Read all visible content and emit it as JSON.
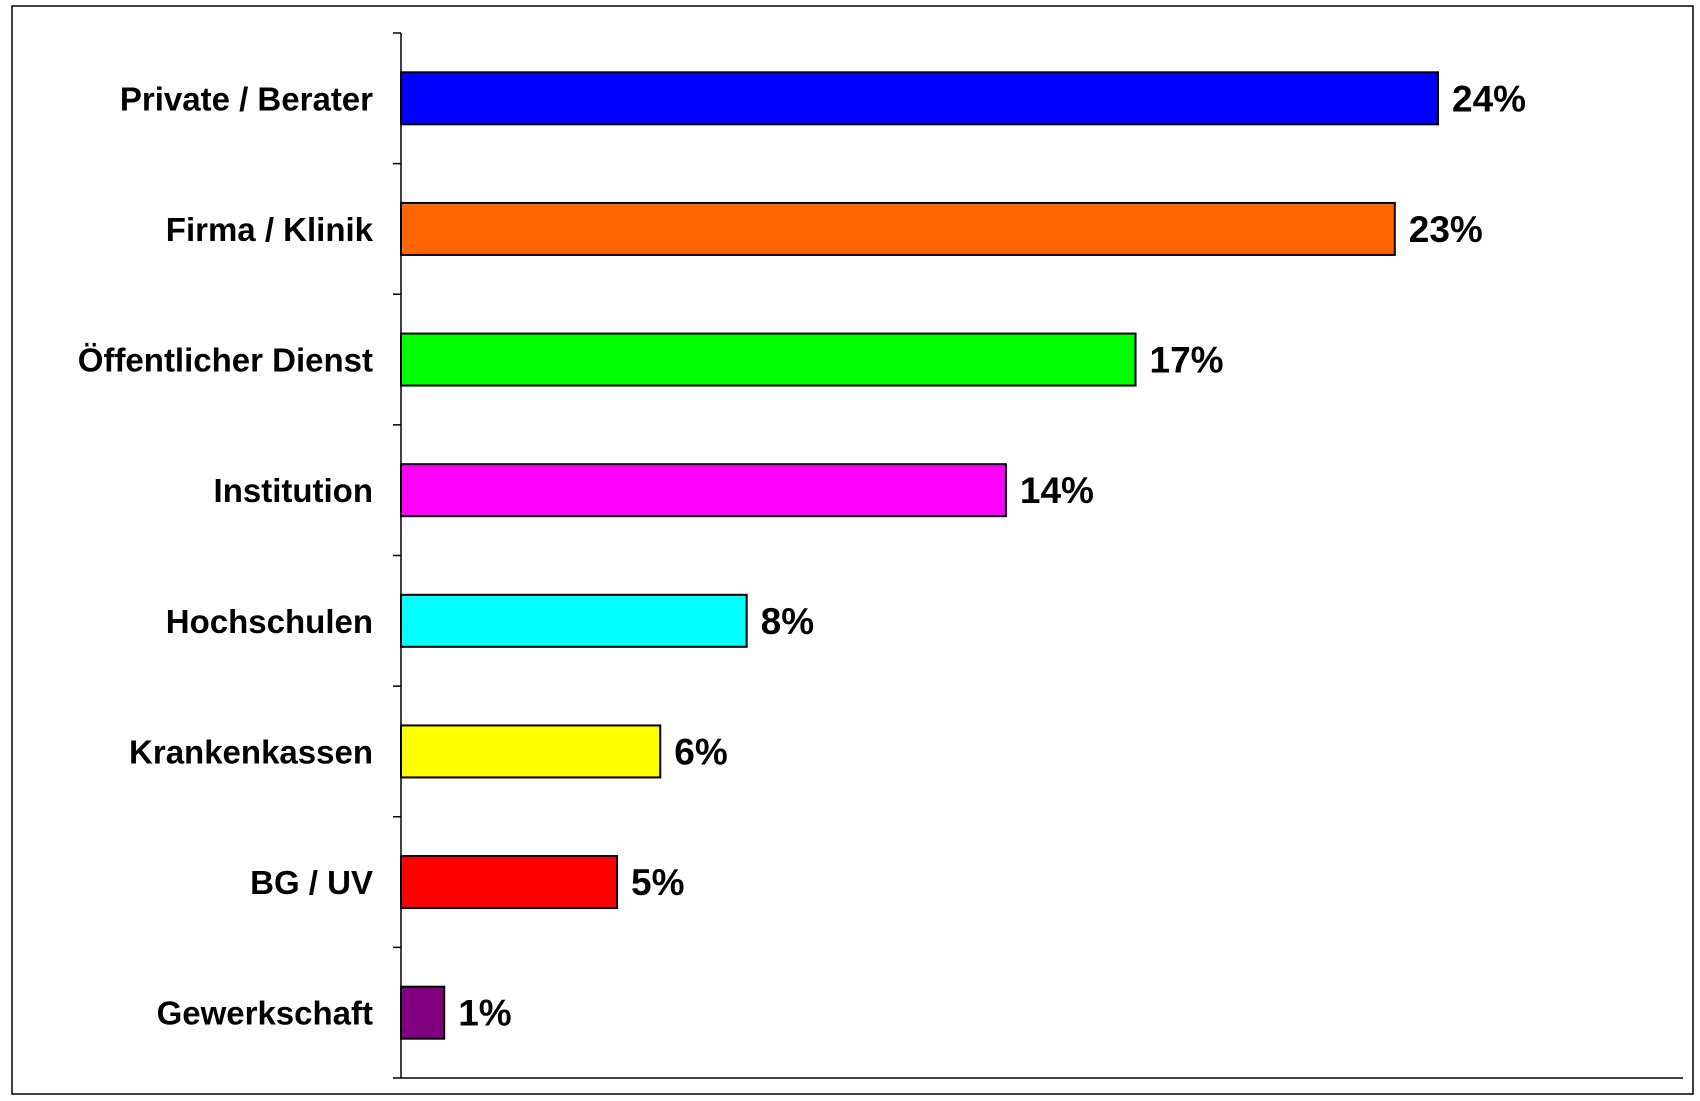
{
  "chart_data": {
    "type": "bar",
    "orientation": "horizontal",
    "categories": [
      "Private / Berater",
      "Firma / Klinik",
      "Öffentlicher Dienst",
      "Institution",
      "Hochschulen",
      "Krankenkassen",
      "BG / UV",
      "Gewerkschaft"
    ],
    "values": [
      24,
      23,
      17,
      14,
      8,
      6,
      5,
      1
    ],
    "value_labels": [
      "24%",
      "23%",
      "17%",
      "14%",
      "8%",
      "6%",
      "5%",
      "1%"
    ],
    "colors": [
      "#0000ff",
      "#ff6600",
      "#00ff00",
      "#ff00ff",
      "#00ffff",
      "#ffff00",
      "#ff0000",
      "#800080"
    ],
    "unit": "%",
    "xlim": [
      0,
      30
    ],
    "grid": false,
    "legend": "none"
  }
}
